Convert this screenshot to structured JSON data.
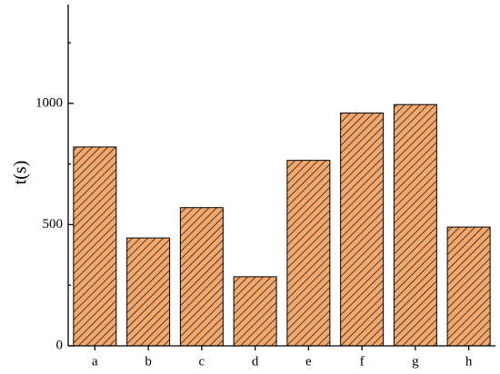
{
  "chart_data": {
    "type": "bar",
    "y_label": "t(s)",
    "categories": [
      "a",
      "b",
      "c",
      "d",
      "e",
      "f",
      "g",
      "h"
    ],
    "values": [
      820,
      445,
      570,
      285,
      765,
      960,
      995,
      490
    ],
    "color": "#f4a86c",
    "hatch": true,
    "ylim": [
      0,
      1400
    ],
    "yticks": [
      0,
      500,
      1000
    ],
    "minor_yticks": [
      250,
      750,
      1250
    ]
  }
}
